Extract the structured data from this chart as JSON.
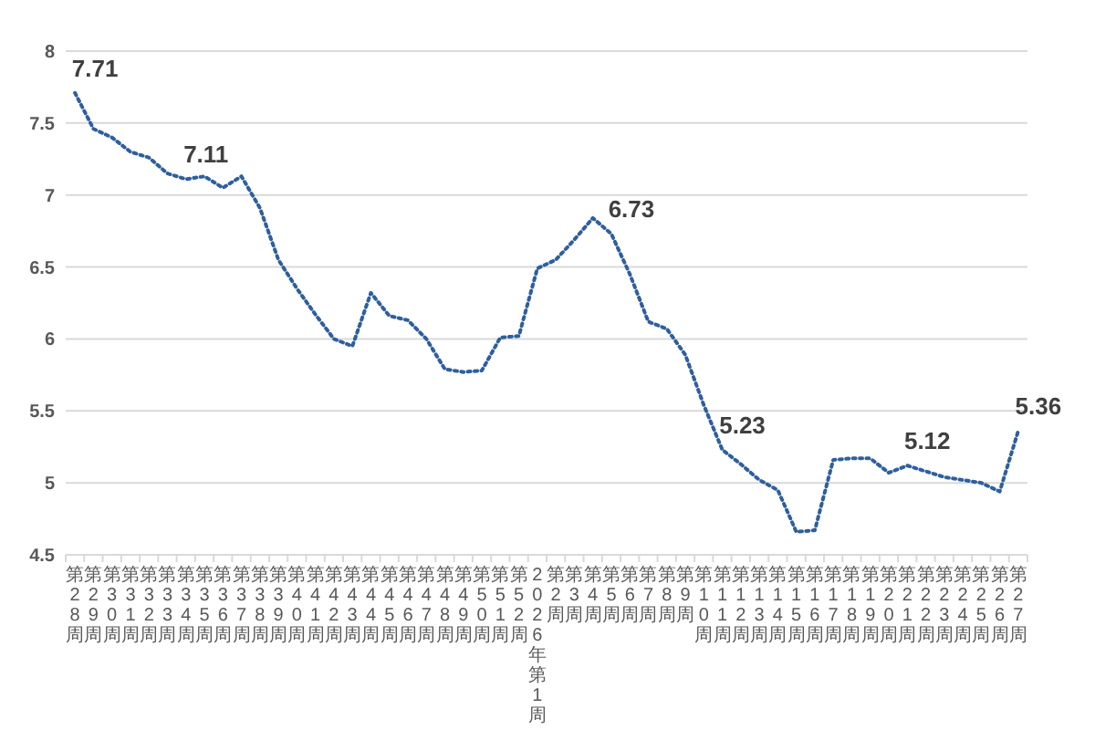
{
  "chart_data": {
    "type": "line",
    "categories": [
      "第28周",
      "第29周",
      "第30周",
      "第31周",
      "第32周",
      "第33周",
      "第34周",
      "第35周",
      "第36周",
      "第37周",
      "第38周",
      "第39周",
      "第40周",
      "第41周",
      "第42周",
      "第43周",
      "第44周",
      "第45周",
      "第46周",
      "第47周",
      "第48周",
      "第49周",
      "第50周",
      "第51周",
      "第52周",
      "2026年第1周",
      "第2周",
      "第3周",
      "第4周",
      "第5周",
      "第6周",
      "第7周",
      "第8周",
      "第9周",
      "第10周",
      "第11周",
      "第12周",
      "第13周",
      "第14周",
      "第15周",
      "第16周",
      "第17周",
      "第18周",
      "第19周",
      "第20周",
      "第21周",
      "第22周",
      "第23周",
      "第24周",
      "第25周",
      "第26周",
      "第27周"
    ],
    "series": [
      {
        "color": "#2e5f9e",
        "values": [
          7.71,
          7.46,
          7.4,
          7.3,
          7.26,
          7.15,
          7.11,
          7.13,
          7.05,
          7.13,
          6.91,
          6.55,
          6.35,
          6.17,
          6.0,
          5.95,
          6.32,
          6.16,
          6.13,
          6.0,
          5.79,
          5.77,
          5.78,
          6.01,
          6.02,
          6.49,
          6.55,
          6.69,
          6.84,
          6.73,
          6.45,
          6.12,
          6.07,
          5.89,
          5.54,
          5.23,
          5.13,
          5.02,
          4.95,
          4.66,
          4.67,
          5.16,
          5.17,
          5.17,
          5.07,
          5.12,
          5.08,
          5.04,
          5.02,
          5.0,
          4.94,
          5.36
        ],
        "value_labels": [
          "7.71",
          null,
          null,
          null,
          null,
          null,
          "7.11",
          null,
          null,
          null,
          null,
          null,
          null,
          null,
          null,
          null,
          null,
          null,
          null,
          null,
          null,
          null,
          null,
          null,
          null,
          null,
          null,
          null,
          null,
          "6.73",
          null,
          null,
          null,
          null,
          null,
          "5.23",
          null,
          null,
          null,
          null,
          null,
          null,
          null,
          null,
          null,
          "5.12",
          null,
          null,
          null,
          null,
          null,
          "5.36"
        ]
      }
    ],
    "ylim": [
      4.5,
      8
    ],
    "yticks": [
      4.5,
      5,
      5.5,
      6,
      6.5,
      7,
      7.5,
      8
    ],
    "grid": "y",
    "line_style": "dotted",
    "marker": "none"
  }
}
